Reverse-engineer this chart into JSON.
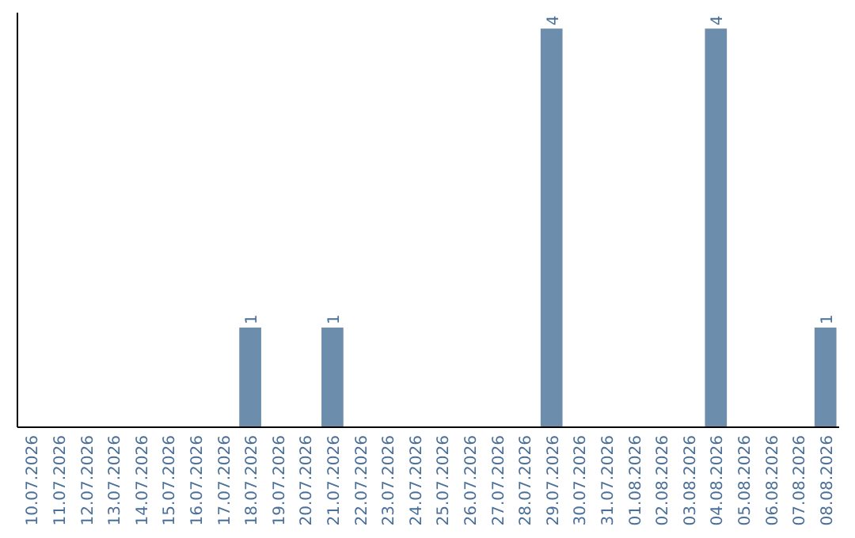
{
  "chart_data": {
    "type": "bar",
    "categories": [
      "10.07.2026",
      "11.07.2026",
      "12.07.2026",
      "13.07.2026",
      "14.07.2026",
      "15.07.2026",
      "16.07.2026",
      "17.07.2026",
      "18.07.2026",
      "19.07.2026",
      "20.07.2026",
      "21.07.2026",
      "22.07.2026",
      "23.07.2026",
      "24.07.2026",
      "25.07.2026",
      "26.07.2026",
      "27.07.2026",
      "28.07.2026",
      "29.07.2026",
      "30.07.2026",
      "31.07.2026",
      "01.08.2026",
      "02.08.2026",
      "03.08.2026",
      "04.08.2026",
      "05.08.2026",
      "06.08.2026",
      "07.08.2026",
      "08.08.2026"
    ],
    "values": [
      0,
      0,
      0,
      0,
      0,
      0,
      0,
      0,
      1,
      0,
      0,
      1,
      0,
      0,
      0,
      0,
      0,
      0,
      0,
      4,
      0,
      0,
      0,
      0,
      0,
      4,
      0,
      0,
      0,
      1
    ],
    "value_labels": [
      null,
      null,
      null,
      null,
      null,
      null,
      null,
      null,
      "1",
      null,
      null,
      "1",
      null,
      null,
      null,
      null,
      null,
      null,
      null,
      "4",
      null,
      null,
      null,
      null,
      null,
      "4",
      null,
      null,
      null,
      "1"
    ],
    "color": "#6c8dab",
    "tick_labels": "x"
  }
}
